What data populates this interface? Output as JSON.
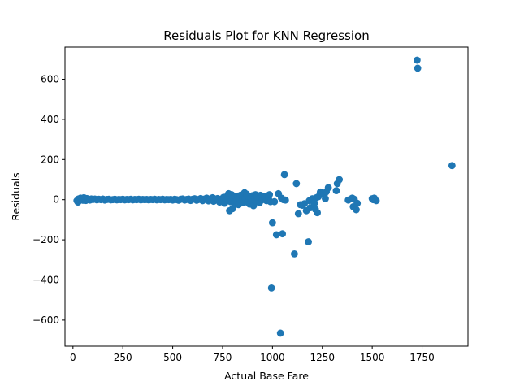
{
  "chart_data": {
    "type": "scatter",
    "title": "Residuals Plot for KNN Regression",
    "xlabel": "Actual Base Fare",
    "ylabel": "Residuals",
    "xlim": [
      -40,
      1980
    ],
    "ylim": [
      -730,
      760
    ],
    "xticks": [
      0,
      250,
      500,
      750,
      1000,
      1250,
      1500,
      1750
    ],
    "xtick_labels": [
      "0",
      "250",
      "500",
      "750",
      "1000",
      "1250",
      "1500",
      "1750"
    ],
    "yticks": [
      -600,
      -400,
      -200,
      0,
      200,
      400,
      600
    ],
    "ytick_labels": [
      "−600",
      "−400",
      "−200",
      "0",
      "200",
      "400",
      "600"
    ],
    "grid": false,
    "marker_color": "#1f77b4",
    "series": [
      {
        "points": [
          [
            20,
            -5
          ],
          [
            25,
            -12
          ],
          [
            28,
            4
          ],
          [
            32,
            2
          ],
          [
            38,
            8
          ],
          [
            45,
            5
          ],
          [
            50,
            -3
          ],
          [
            55,
            10
          ],
          [
            60,
            3
          ],
          [
            65,
            -4
          ],
          [
            70,
            6
          ],
          [
            78,
            2
          ],
          [
            85,
            -2
          ],
          [
            92,
            4
          ],
          [
            100,
            1
          ],
          [
            110,
            3
          ],
          [
            120,
            -1
          ],
          [
            130,
            2
          ],
          [
            140,
            0
          ],
          [
            150,
            3
          ],
          [
            160,
            -2
          ],
          [
            170,
            1
          ],
          [
            180,
            2
          ],
          [
            190,
            -1
          ],
          [
            200,
            0
          ],
          [
            210,
            2
          ],
          [
            220,
            -1
          ],
          [
            230,
            1
          ],
          [
            240,
            0
          ],
          [
            250,
            2
          ],
          [
            260,
            -1
          ],
          [
            270,
            1
          ],
          [
            280,
            0
          ],
          [
            290,
            2
          ],
          [
            300,
            -1
          ],
          [
            310,
            1
          ],
          [
            320,
            0
          ],
          [
            330,
            2
          ],
          [
            340,
            -1
          ],
          [
            350,
            1
          ],
          [
            360,
            0
          ],
          [
            370,
            1
          ],
          [
            380,
            -1
          ],
          [
            390,
            1
          ],
          [
            400,
            0
          ],
          [
            410,
            2
          ],
          [
            420,
            -1
          ],
          [
            430,
            1
          ],
          [
            440,
            0
          ],
          [
            450,
            2
          ],
          [
            460,
            -1
          ],
          [
            470,
            1
          ],
          [
            480,
            0
          ],
          [
            490,
            1
          ],
          [
            500,
            -2
          ],
          [
            510,
            2
          ],
          [
            520,
            0
          ],
          [
            530,
            -3
          ],
          [
            540,
            2
          ],
          [
            550,
            4
          ],
          [
            560,
            -2
          ],
          [
            570,
            1
          ],
          [
            580,
            3
          ],
          [
            590,
            -4
          ],
          [
            600,
            2
          ],
          [
            610,
            5
          ],
          [
            620,
            -3
          ],
          [
            630,
            1
          ],
          [
            640,
            6
          ],
          [
            650,
            -5
          ],
          [
            660,
            3
          ],
          [
            670,
            8
          ],
          [
            680,
            -6
          ],
          [
            690,
            4
          ],
          [
            700,
            10
          ],
          [
            705,
            -8
          ],
          [
            715,
            2
          ],
          [
            725,
            6
          ],
          [
            735,
            -12
          ],
          [
            745,
            4
          ],
          [
            755,
            12
          ],
          [
            760,
            -18
          ],
          [
            770,
            3
          ],
          [
            775,
            20
          ],
          [
            780,
            30
          ],
          [
            785,
            -55
          ],
          [
            790,
            -10
          ],
          [
            795,
            25
          ],
          [
            800,
            -45
          ],
          [
            805,
            8
          ],
          [
            810,
            -20
          ],
          [
            815,
            15
          ],
          [
            820,
            -5
          ],
          [
            825,
            18
          ],
          [
            830,
            -25
          ],
          [
            835,
            5
          ],
          [
            840,
            22
          ],
          [
            845,
            -8
          ],
          [
            850,
            10
          ],
          [
            855,
            -15
          ],
          [
            860,
            35
          ],
          [
            865,
            5
          ],
          [
            870,
            28
          ],
          [
            875,
            -12
          ],
          [
            880,
            15
          ],
          [
            885,
            -22
          ],
          [
            890,
            8
          ],
          [
            895,
            -5
          ],
          [
            900,
            20
          ],
          [
            905,
            -30
          ],
          [
            910,
            12
          ],
          [
            915,
            25
          ],
          [
            920,
            -8
          ],
          [
            925,
            18
          ],
          [
            930,
            5
          ],
          [
            935,
            -15
          ],
          [
            940,
            22
          ],
          [
            945,
            10
          ],
          [
            950,
            0
          ],
          [
            960,
            15
          ],
          [
            970,
            -5
          ],
          [
            980,
            10
          ],
          [
            985,
            25
          ],
          [
            990,
            -10
          ],
          [
            1000,
            -115
          ],
          [
            1010,
            -10
          ],
          [
            1020,
            -175
          ],
          [
            1030,
            30
          ],
          [
            1040,
            -665
          ],
          [
            1045,
            8
          ],
          [
            1050,
            -170
          ],
          [
            1055,
            0
          ],
          [
            1060,
            125
          ],
          [
            1065,
            -2
          ],
          [
            995,
            -440
          ],
          [
            1110,
            -270
          ],
          [
            1120,
            80
          ],
          [
            1130,
            -70
          ],
          [
            1140,
            -25
          ],
          [
            1150,
            -28
          ],
          [
            1160,
            -20
          ],
          [
            1170,
            -55
          ],
          [
            1180,
            -210
          ],
          [
            1185,
            -5
          ],
          [
            1190,
            -40
          ],
          [
            1200,
            5
          ],
          [
            1210,
            -18
          ],
          [
            1215,
            -48
          ],
          [
            1220,
            10
          ],
          [
            1225,
            -65
          ],
          [
            1230,
            15
          ],
          [
            1240,
            38
          ],
          [
            1260,
            25
          ],
          [
            1265,
            5
          ],
          [
            1270,
            40
          ],
          [
            1280,
            60
          ],
          [
            1320,
            45
          ],
          [
            1325,
            80
          ],
          [
            1335,
            100
          ],
          [
            1380,
            -2
          ],
          [
            1400,
            8
          ],
          [
            1405,
            -35
          ],
          [
            1410,
            2
          ],
          [
            1420,
            -50
          ],
          [
            1425,
            -18
          ],
          [
            1500,
            5
          ],
          [
            1505,
            0
          ],
          [
            1510,
            8
          ],
          [
            1520,
            -5
          ],
          [
            1725,
            695
          ],
          [
            1728,
            655
          ],
          [
            1900,
            170
          ]
        ]
      }
    ]
  }
}
